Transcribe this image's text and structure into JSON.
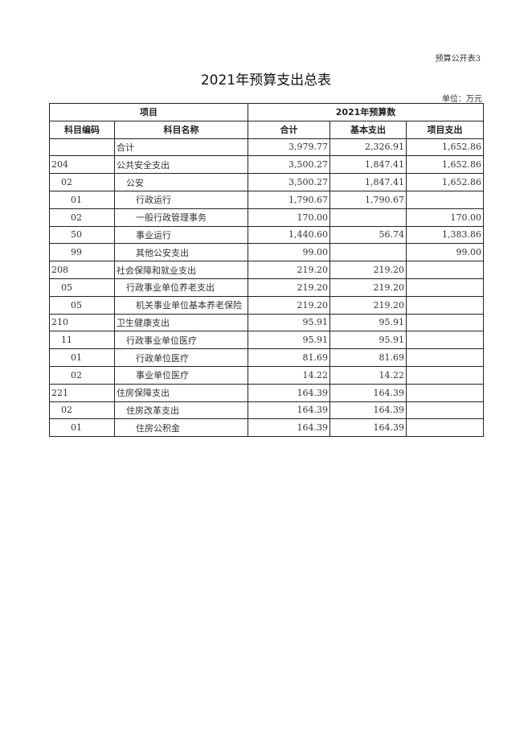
{
  "form_no": "预算公开表3",
  "title": "2021年预算支出总表",
  "unit": "单位：万元",
  "header": {
    "group_item": "项目",
    "group_budget": "2021年预算数",
    "code": "科目编码",
    "name": "科目名称",
    "total": "合计",
    "basic": "基本支出",
    "project": "项目支出"
  },
  "rows": [
    {
      "level": 0,
      "code": "",
      "name": "合计",
      "total": "3,979.77",
      "basic": "2,326.91",
      "project": "1,652.86"
    },
    {
      "level": 0,
      "code": "204",
      "name": "公共安全支出",
      "total": "3,500.27",
      "basic": "1,847.41",
      "project": "1,652.86"
    },
    {
      "level": 1,
      "code": "02",
      "name": "公安",
      "total": "3,500.27",
      "basic": "1,847.41",
      "project": "1,652.86"
    },
    {
      "level": 2,
      "code": "01",
      "name": "行政运行",
      "total": "1,790.67",
      "basic": "1,790.67",
      "project": ""
    },
    {
      "level": 2,
      "code": "02",
      "name": "一般行政管理事务",
      "total": "170.00",
      "basic": "",
      "project": "170.00"
    },
    {
      "level": 2,
      "code": "50",
      "name": "事业运行",
      "total": "1,440.60",
      "basic": "56.74",
      "project": "1,383.86"
    },
    {
      "level": 2,
      "code": "99",
      "name": "其他公安支出",
      "total": "99.00",
      "basic": "",
      "project": "99.00"
    },
    {
      "level": 0,
      "code": "208",
      "name": "社会保障和就业支出",
      "total": "219.20",
      "basic": "219.20",
      "project": ""
    },
    {
      "level": 1,
      "code": "05",
      "name": "行政事业单位养老支出",
      "total": "219.20",
      "basic": "219.20",
      "project": ""
    },
    {
      "level": 2,
      "code": "05",
      "name": "机关事业单位基本养老保险",
      "total": "219.20",
      "basic": "219.20",
      "project": ""
    },
    {
      "level": 0,
      "code": "210",
      "name": "卫生健康支出",
      "total": "95.91",
      "basic": "95.91",
      "project": ""
    },
    {
      "level": 1,
      "code": "11",
      "name": "行政事业单位医疗",
      "total": "95.91",
      "basic": "95.91",
      "project": ""
    },
    {
      "level": 2,
      "code": "01",
      "name": "行政单位医疗",
      "total": "81.69",
      "basic": "81.69",
      "project": ""
    },
    {
      "level": 2,
      "code": "02",
      "name": "事业单位医疗",
      "total": "14.22",
      "basic": "14.22",
      "project": ""
    },
    {
      "level": 0,
      "code": "221",
      "name": "住房保障支出",
      "total": "164.39",
      "basic": "164.39",
      "project": ""
    },
    {
      "level": 1,
      "code": "02",
      "name": "住房改革支出",
      "total": "164.39",
      "basic": "164.39",
      "project": ""
    },
    {
      "level": 2,
      "code": "01",
      "name": "住房公积金",
      "total": "164.39",
      "basic": "164.39",
      "project": ""
    }
  ]
}
